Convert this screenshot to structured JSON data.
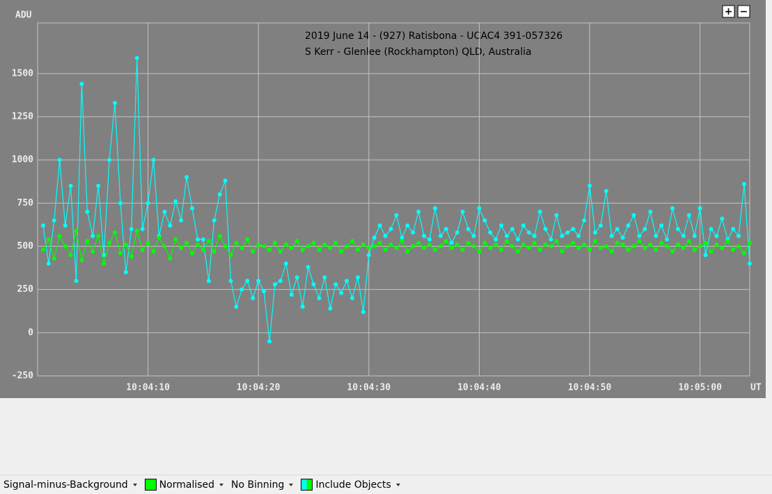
{
  "chart_data": {
    "type": "line",
    "title": "2019 June 14 - (927) Ratisbona - UCAC4 391-057326",
    "subtitle": "S Kerr - Glenlee (Rockhampton) QLD, Australia",
    "ylabel": "ADU",
    "xlabel": "UT",
    "xlim": [
      "10:04:00",
      "10:05:04.5"
    ],
    "xticks": [
      "10:04:10",
      "10:04:20",
      "10:04:30",
      "10:04:40",
      "10:04:50",
      "10:05:00"
    ],
    "ylim": [
      -250,
      1793
    ],
    "yticks": [
      -250,
      0,
      250,
      500,
      750,
      1000,
      1250,
      1500
    ],
    "grid": true,
    "x": [
      "10:04:00.5",
      "10:04:01",
      "10:04:01.5",
      "10:04:02",
      "10:04:02.5",
      "10:04:03",
      "10:04:03.5",
      "10:04:04",
      "10:04:04.5",
      "10:04:05",
      "10:04:05.5",
      "10:04:06",
      "10:04:06.5",
      "10:04:07",
      "10:04:07.5",
      "10:04:08",
      "10:04:08.5",
      "10:04:09",
      "10:04:09.5",
      "10:04:10",
      "10:04:10.5",
      "10:04:11",
      "10:04:11.5",
      "10:04:12",
      "10:04:12.5",
      "10:04:13",
      "10:04:13.5",
      "10:04:14",
      "10:04:14.5",
      "10:04:15",
      "10:04:15.5",
      "10:04:16",
      "10:04:16.5",
      "10:04:17",
      "10:04:17.5",
      "10:04:18",
      "10:04:18.5",
      "10:04:19",
      "10:04:19.5",
      "10:04:20",
      "10:04:20.5",
      "10:04:21",
      "10:04:21.5",
      "10:04:22",
      "10:04:22.5",
      "10:04:23",
      "10:04:23.5",
      "10:04:24",
      "10:04:24.5",
      "10:04:25",
      "10:04:25.5",
      "10:04:26",
      "10:04:26.5",
      "10:04:27",
      "10:04:27.5",
      "10:04:28",
      "10:04:28.5",
      "10:04:29",
      "10:04:29.5",
      "10:04:30",
      "10:04:30.5",
      "10:04:31",
      "10:04:31.5",
      "10:04:32",
      "10:04:32.5",
      "10:04:33",
      "10:04:33.5",
      "10:04:34",
      "10:04:34.5",
      "10:04:35",
      "10:04:35.5",
      "10:04:36",
      "10:04:36.5",
      "10:04:37",
      "10:04:37.5",
      "10:04:38",
      "10:04:38.5",
      "10:04:39",
      "10:04:39.5",
      "10:04:40",
      "10:04:40.5",
      "10:04:41",
      "10:04:41.5",
      "10:04:42",
      "10:04:42.5",
      "10:04:43",
      "10:04:43.5",
      "10:04:44",
      "10:04:44.5",
      "10:04:45",
      "10:04:45.5",
      "10:04:46",
      "10:04:46.5",
      "10:04:47",
      "10:04:47.5",
      "10:04:48",
      "10:04:48.5",
      "10:04:49",
      "10:04:49.5",
      "10:04:50",
      "10:04:50.5",
      "10:04:51",
      "10:04:51.5",
      "10:04:52",
      "10:04:52.5",
      "10:04:53",
      "10:04:53.5",
      "10:04:54",
      "10:04:54.5",
      "10:04:55",
      "10:04:55.5",
      "10:04:56",
      "10:04:56.5",
      "10:04:57",
      "10:04:57.5",
      "10:04:58",
      "10:04:58.5",
      "10:04:59",
      "10:04:59.5",
      "10:05:00",
      "10:05:00.5",
      "10:05:01",
      "10:05:01.5",
      "10:05:02",
      "10:05:02.5",
      "10:05:03",
      "10:05:03.5",
      "10:05:04",
      "10:05:04.5"
    ],
    "series": [
      {
        "color": "#00ffff",
        "values": [
          620,
          400,
          650,
          1000,
          620,
          850,
          300,
          1440,
          700,
          560,
          850,
          450,
          1000,
          1330,
          750,
          350,
          600,
          1590,
          600,
          750,
          1000,
          560,
          700,
          620,
          760,
          650,
          900,
          720,
          540,
          540,
          300,
          650,
          800,
          880,
          300,
          150,
          250,
          300,
          200,
          300,
          240,
          -50,
          280,
          300,
          400,
          220,
          320,
          150,
          380,
          280,
          200,
          320,
          140,
          280,
          230,
          300,
          200,
          320,
          120,
          450,
          550,
          620,
          560,
          600,
          680,
          550,
          620,
          580,
          700,
          560,
          540,
          720,
          560,
          600,
          520,
          580,
          700,
          600,
          560,
          720,
          650,
          580,
          540,
          620,
          560,
          600,
          540,
          620,
          580,
          560,
          700,
          600,
          540,
          680,
          560,
          580,
          600,
          560,
          650,
          850,
          580,
          620,
          820,
          560,
          600,
          550,
          620,
          680,
          560,
          600,
          700,
          560,
          620,
          540,
          720,
          600,
          560,
          680,
          560,
          720,
          450,
          600,
          560,
          660,
          540,
          600,
          560,
          860,
          400
        ]
      },
      {
        "color": "#00ff00",
        "values": [
          480,
          540,
          430,
          560,
          500,
          450,
          590,
          420,
          530,
          470,
          560,
          400,
          520,
          580,
          460,
          510,
          440,
          590,
          480,
          520,
          470,
          550,
          500,
          430,
          540,
          490,
          520,
          460,
          510,
          480,
          530,
          470,
          560,
          500,
          450,
          520,
          490,
          540,
          470,
          510,
          500,
          480,
          520,
          470,
          510,
          490,
          530,
          480,
          500,
          520,
          480,
          510,
          490,
          520,
          470,
          500,
          530,
          480,
          510,
          490,
          500,
          520,
          480,
          510,
          490,
          530,
          470,
          500,
          520,
          490,
          510,
          480,
          500,
          530,
          490,
          510,
          480,
          520,
          500,
          470,
          520,
          490,
          510,
          480,
          530,
          500,
          470,
          510,
          490,
          520,
          480,
          510,
          500,
          530,
          470,
          500,
          520,
          490,
          510,
          480,
          530,
          490,
          500,
          470,
          520,
          510,
          480,
          500,
          530,
          490,
          510,
          480,
          520,
          500,
          470,
          510,
          490,
          530,
          480,
          500,
          520,
          470,
          510,
          490,
          530,
          480,
          500,
          460,
          520
        ]
      }
    ]
  },
  "zoom_buttons": [
    "+",
    "−"
  ],
  "toolbar": [
    "Signal-minus-Background",
    "Normalised",
    "No Binning",
    "Include Objects"
  ]
}
